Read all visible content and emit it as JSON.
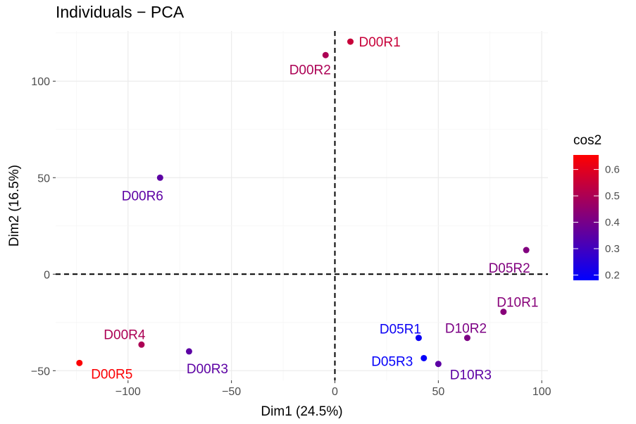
{
  "chart_data": {
    "type": "scatter",
    "title": "Individuals − PCA",
    "xlabel": "Dim1 (24.5%)",
    "ylabel": "Dim2 (16.5%)",
    "xlim": [
      -135,
      103
    ],
    "ylim": [
      -55,
      126
    ],
    "xticks": [
      -100,
      -50,
      0,
      50,
      100
    ],
    "xtick_labels": [
      "−100",
      "−50",
      "0",
      "50",
      "100"
    ],
    "yticks": [
      -50,
      0,
      50,
      100
    ],
    "ytick_labels": [
      "−50",
      "0",
      "50",
      "100"
    ],
    "grid": true,
    "reference_lines": [
      {
        "axis": "x",
        "value": 0,
        "style": "dashed"
      },
      {
        "axis": "y",
        "value": 0,
        "style": "dashed"
      }
    ],
    "legend": {
      "title": "cos2",
      "placement": "right",
      "min": 0.18,
      "max": 0.655,
      "ticks": [
        0.2,
        0.3,
        0.4,
        0.5,
        0.6
      ],
      "tick_labels": [
        "0.2",
        "0.3",
        "0.4",
        "0.5",
        "0.6"
      ],
      "colors": [
        "#0000FF",
        "#FF0000"
      ]
    },
    "points": [
      {
        "label": "D00R1",
        "x": 7.5,
        "y": 120.5,
        "cos2": 0.55
      },
      {
        "label": "D00R2",
        "x": -4.5,
        "y": 113.5,
        "cos2": 0.5
      },
      {
        "label": "D00R6",
        "x": -84.5,
        "y": 50.0,
        "cos2": 0.35
      },
      {
        "label": "D05R2",
        "x": 92.5,
        "y": 12.5,
        "cos2": 0.42
      },
      {
        "label": "D10R1",
        "x": 81.5,
        "y": -19.5,
        "cos2": 0.43
      },
      {
        "label": "D10R2",
        "x": 64.0,
        "y": -33.0,
        "cos2": 0.41
      },
      {
        "label": "D05R1",
        "x": 40.5,
        "y": -33.0,
        "cos2": 0.2
      },
      {
        "label": "D05R3",
        "x": 43.0,
        "y": -43.5,
        "cos2": 0.19
      },
      {
        "label": "D10R3",
        "x": 50.0,
        "y": -46.5,
        "cos2": 0.35
      },
      {
        "label": "D00R4",
        "x": -93.5,
        "y": -36.5,
        "cos2": 0.5
      },
      {
        "label": "D00R5",
        "x": -123.5,
        "y": -46.0,
        "cos2": 0.65
      },
      {
        "label": "D00R3",
        "x": -70.5,
        "y": -40.0,
        "cos2": 0.35
      }
    ]
  }
}
